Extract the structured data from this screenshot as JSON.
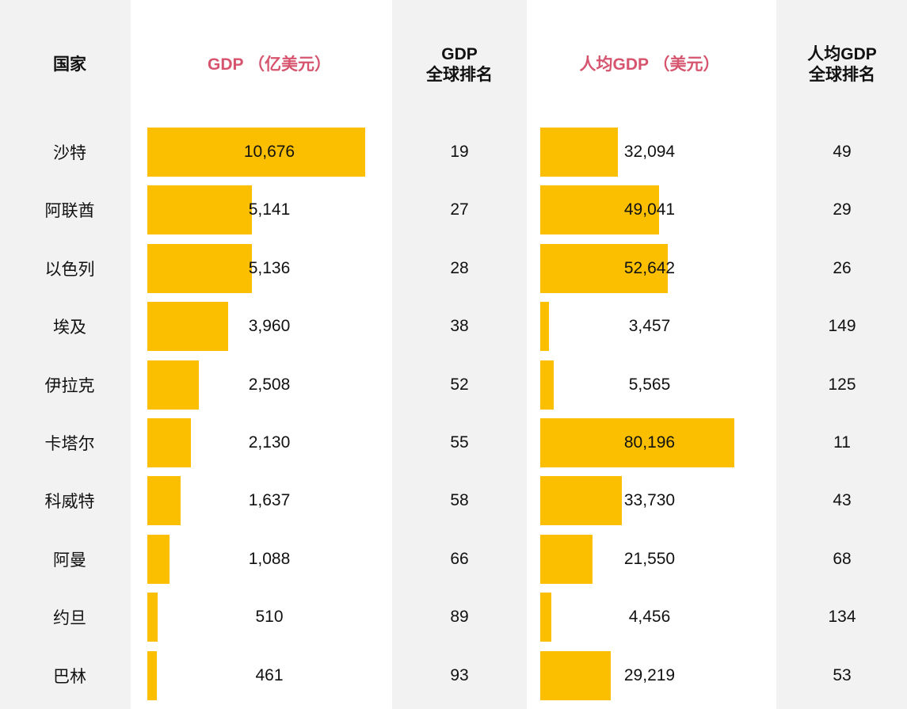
{
  "table": {
    "bar_color": "#fbbf00",
    "highlight_color": "#d6546e",
    "headers": [
      {
        "lines": [
          "国家"
        ],
        "highlight": false
      },
      {
        "lines": [
          "GDP （亿美元）"
        ],
        "highlight": true
      },
      {
        "lines": [
          "GDP",
          "全球排名"
        ],
        "highlight": false
      },
      {
        "lines": [
          "人均GDP （美元）"
        ],
        "highlight": true
      },
      {
        "lines": [
          "人均GDP",
          "全球排名"
        ],
        "highlight": false
      }
    ],
    "rows": [
      {
        "country": "沙特",
        "gdp": 10676,
        "gdp_label": "10,676",
        "gdp_rank": 19,
        "per_capita": 32094,
        "per_capita_label": "32,094",
        "per_capita_rank": 49
      },
      {
        "country": "阿联酋",
        "gdp": 5141,
        "gdp_label": "5,141",
        "gdp_rank": 27,
        "per_capita": 49041,
        "per_capita_label": "49,041",
        "per_capita_rank": 29
      },
      {
        "country": "以色列",
        "gdp": 5136,
        "gdp_label": "5,136",
        "gdp_rank": 28,
        "per_capita": 52642,
        "per_capita_label": "52,642",
        "per_capita_rank": 26
      },
      {
        "country": "埃及",
        "gdp": 3960,
        "gdp_label": "3,960",
        "gdp_rank": 38,
        "per_capita": 3457,
        "per_capita_label": "3,457",
        "per_capita_rank": 149
      },
      {
        "country": "伊拉克",
        "gdp": 2508,
        "gdp_label": "2,508",
        "gdp_rank": 52,
        "per_capita": 5565,
        "per_capita_label": "5,565",
        "per_capita_rank": 125
      },
      {
        "country": "卡塔尔",
        "gdp": 2130,
        "gdp_label": "2,130",
        "gdp_rank": 55,
        "per_capita": 80196,
        "per_capita_label": "80,196",
        "per_capita_rank": 11
      },
      {
        "country": "科威特",
        "gdp": 1637,
        "gdp_label": "1,637",
        "gdp_rank": 58,
        "per_capita": 33730,
        "per_capita_label": "33,730",
        "per_capita_rank": 43
      },
      {
        "country": "阿曼",
        "gdp": 1088,
        "gdp_label": "1,088",
        "gdp_rank": 66,
        "per_capita": 21550,
        "per_capita_label": "21,550",
        "per_capita_rank": 68
      },
      {
        "country": "约旦",
        "gdp": 510,
        "gdp_label": "510",
        "gdp_rank": 89,
        "per_capita": 4456,
        "per_capita_label": "4,456",
        "per_capita_rank": 134
      },
      {
        "country": "巴林",
        "gdp": 461,
        "gdp_label": "461",
        "gdp_rank": 93,
        "per_capita": 29219,
        "per_capita_label": "29,219",
        "per_capita_rank": 53
      }
    ]
  }
}
